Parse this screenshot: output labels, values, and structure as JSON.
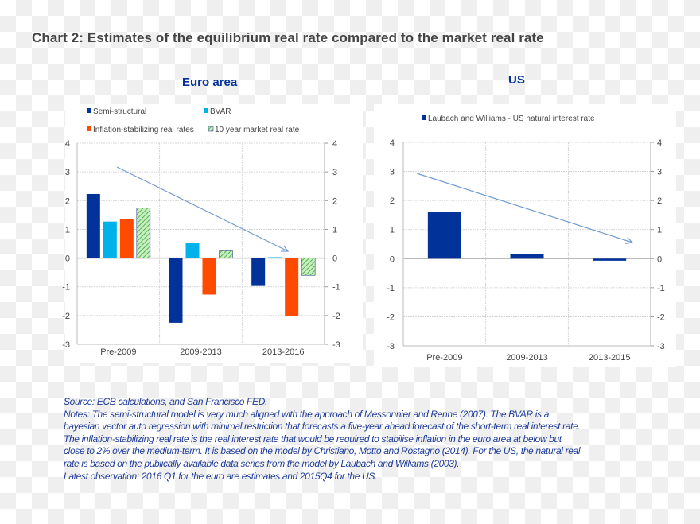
{
  "title": "Chart 2: Estimates of the equilibrium real rate compared to the market real rate",
  "colors": {
    "semi_structural": "#003299",
    "bvar": "#00b1ea",
    "inflation_stabilizing": "#ff4b00",
    "market_real_rate": "#65b800",
    "us": "#003299",
    "arrow": "#6f9ad3"
  },
  "chart_data": [
    {
      "type": "bar",
      "title": "Euro area",
      "categories": [
        "Pre-2009",
        "2009-2013",
        "2013-2016"
      ],
      "series": [
        {
          "name": "Semi-structural",
          "values": [
            2.23,
            -2.25,
            -0.97
          ]
        },
        {
          "name": "BVAR",
          "values": [
            1.27,
            0.52,
            0.03
          ]
        },
        {
          "name": "Inflation-stabilizing real rates",
          "values": [
            1.35,
            -1.27,
            -2.03
          ]
        },
        {
          "name": "10 year market real rate",
          "values": [
            1.75,
            0.25,
            -0.6
          ]
        }
      ],
      "ylim": [
        -3,
        4
      ],
      "yticks": [
        "-3",
        "-2",
        "-1",
        "0",
        "1",
        "2",
        "3",
        "4"
      ],
      "grid": true,
      "legend": "top",
      "annotation": "downward trend arrow"
    },
    {
      "type": "bar",
      "title": "US",
      "categories": [
        "Pre-2009",
        "2009-2013",
        "2013-2015"
      ],
      "series": [
        {
          "name": "Laubach and Williams - US natural interest rate",
          "values": [
            1.6,
            0.17,
            -0.07
          ]
        }
      ],
      "ylim": [
        -3,
        4
      ],
      "yticks": [
        "-3",
        "-2",
        "-1",
        "0",
        "1",
        "2",
        "3",
        "4"
      ],
      "grid": true,
      "legend": "top",
      "annotation": "downward trend arrow"
    }
  ],
  "notes": [
    "Source: ECB calculations, and San Francisco FED.",
    "Notes: The semi-structural model is very much aligned with the approach of Messonnier and Renne (2007). The BVAR is a",
    "bayesian vector auto regression with minimal restriction  that forecasts a five-year ahead forecast of the short-term real interest rate.",
    "The  inflation-stabilizing real rate is the real interest rate that would be required to stabilise inflation in the euro area at below but",
    "close to 2% over the medium-term. It is based on the model by Christiano, Motto and Rostagno (2014). For the US, the natural real",
    "rate is based on the publically available data series from the model by Laubach and Williams (2003).",
    "Latest observation: 2016 Q1  for the euro are estimates and 2015Q4 for the US."
  ]
}
